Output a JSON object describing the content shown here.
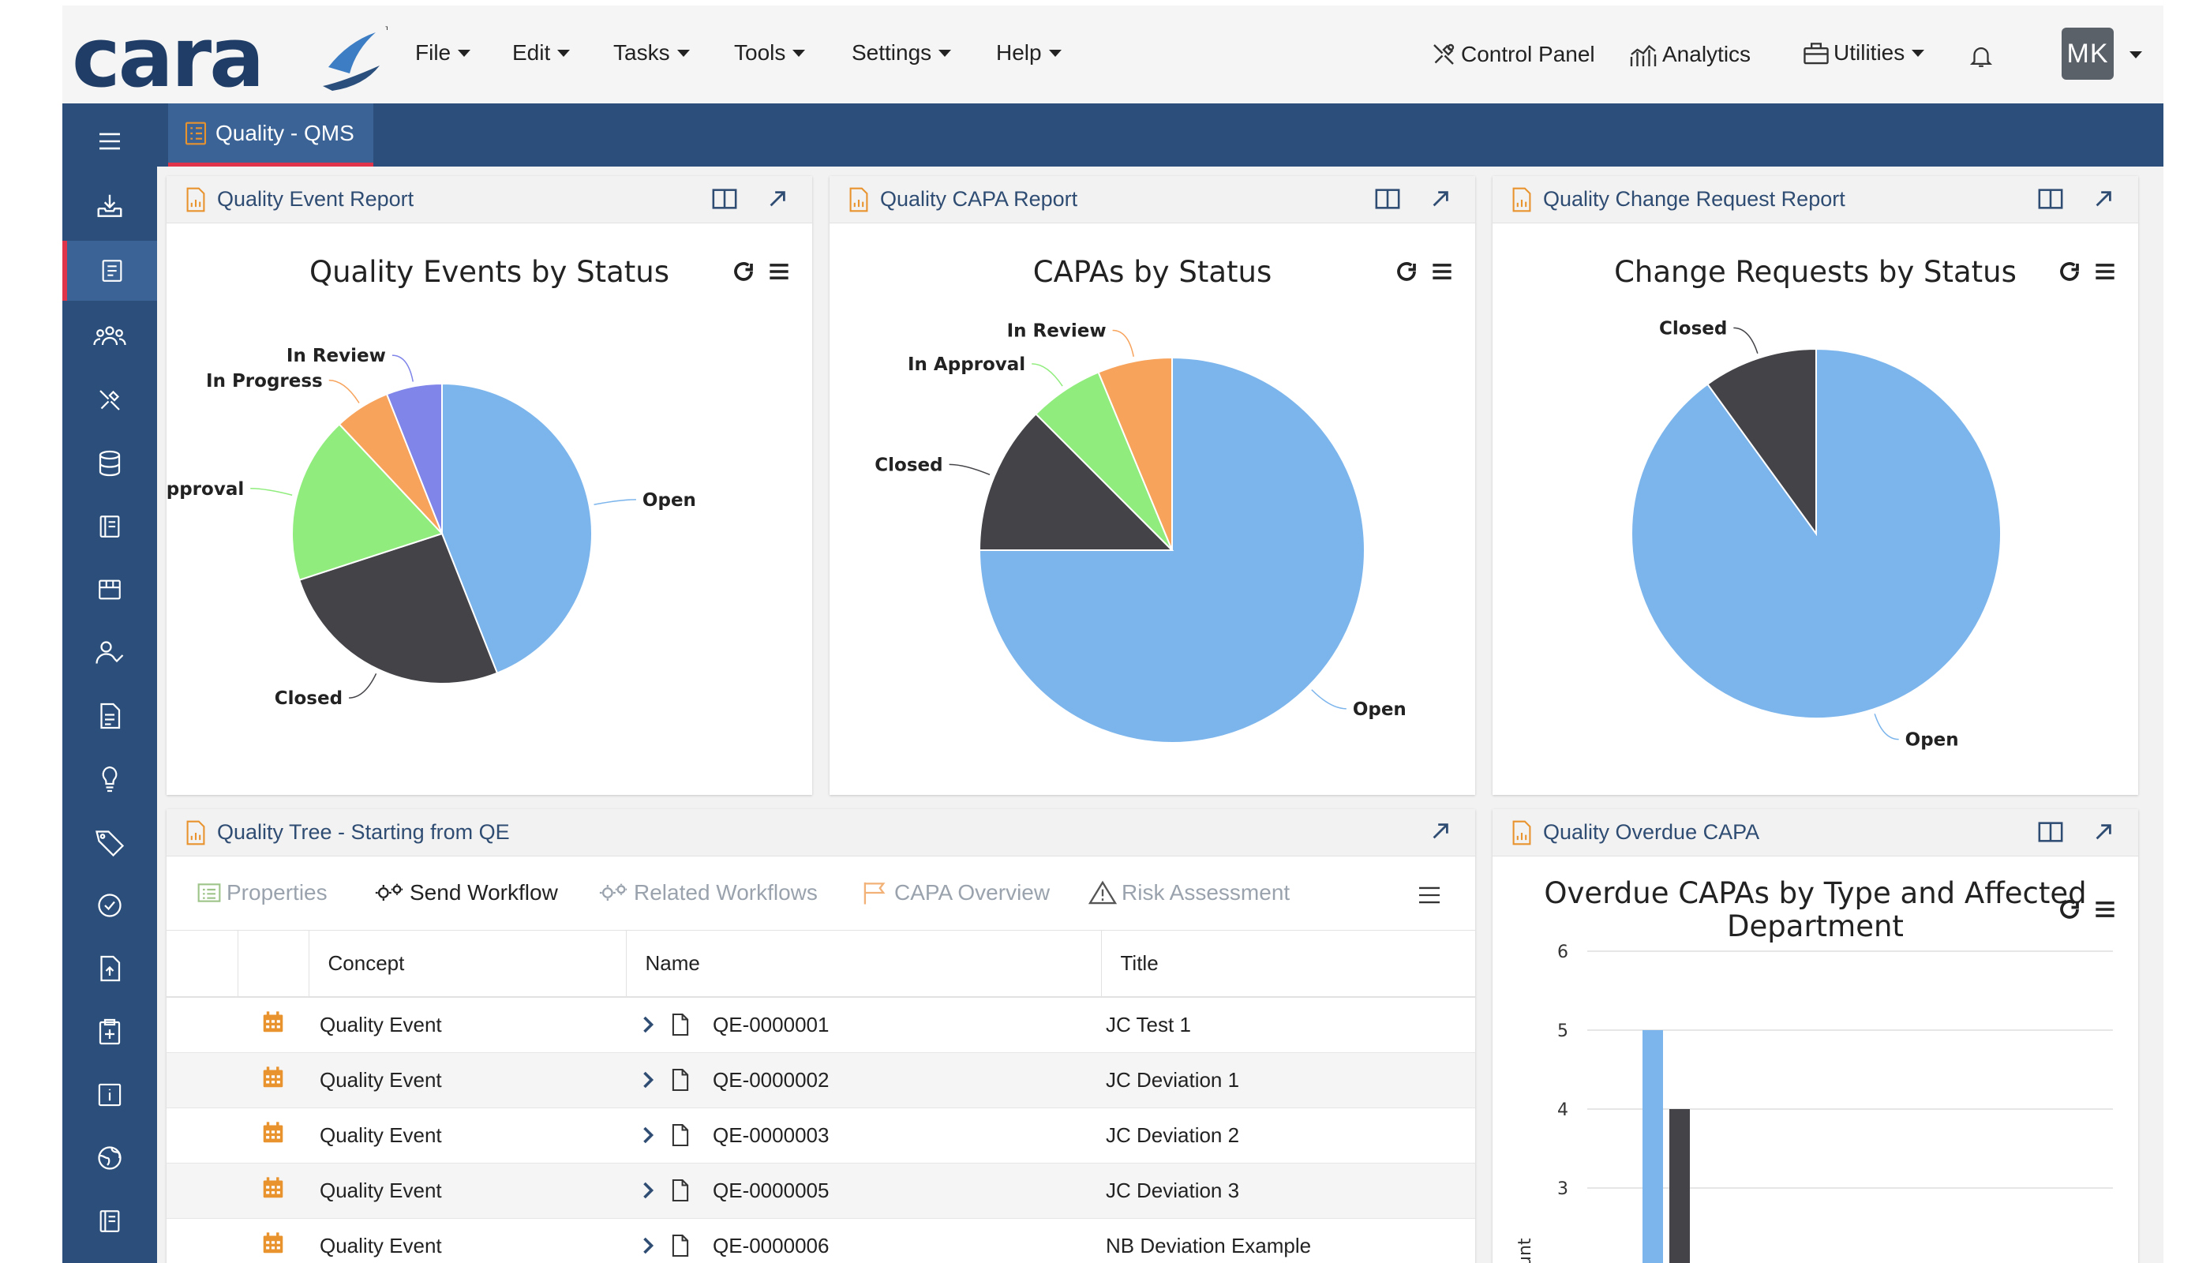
{
  "app": {
    "logo_text": "cara",
    "trademark": "™",
    "menus": [
      {
        "label": "File"
      },
      {
        "label": "Edit"
      },
      {
        "label": "Tasks"
      },
      {
        "label": "Tools"
      },
      {
        "label": "Settings"
      },
      {
        "label": "Help"
      }
    ],
    "tools": {
      "control_panel": "Control Panel",
      "analytics": "Analytics",
      "utilities": "Utilities"
    },
    "user_initials": "MK"
  },
  "tab": {
    "label": "Quality - QMS"
  },
  "panels": {
    "event_report": {
      "header": "Quality Event Report",
      "chart_title": "Quality Events by Status"
    },
    "capa_report": {
      "header": "Quality CAPA Report",
      "chart_title": "CAPAs by Status"
    },
    "change_report": {
      "header": "Quality Change Request Report",
      "chart_title": "Change Requests by Status"
    },
    "tree": {
      "header": "Quality Tree - Starting from QE",
      "toolbar": {
        "properties": "Properties",
        "send_workflow": "Send Workflow",
        "related_workflows": "Related Workflows",
        "capa_overview": "CAPA Overview",
        "risk_assessment": "Risk Assessment"
      },
      "columns": [
        "Concept",
        "Name",
        "Title"
      ],
      "rows": [
        {
          "concept": "Quality Event",
          "name": "QE-0000001",
          "title": "JC Test 1"
        },
        {
          "concept": "Quality Event",
          "name": "QE-0000002",
          "title": "JC Deviation 1"
        },
        {
          "concept": "Quality Event",
          "name": "QE-0000003",
          "title": "JC Deviation 2"
        },
        {
          "concept": "Quality Event",
          "name": "QE-0000005",
          "title": "JC Deviation 3"
        },
        {
          "concept": "Quality Event",
          "name": "QE-0000006",
          "title": "NB Deviation Example"
        }
      ]
    },
    "overdue": {
      "header": "Quality Overdue CAPA",
      "chart_title_line1": "Overdue CAPAs by Type and Affected",
      "chart_title_line2": "Department",
      "y_axis_partial": "unt"
    }
  },
  "colors": {
    "open": "#7cb5ec",
    "closed": "#434348",
    "in_approval": "#90ed7d",
    "in_progress": "#f7a35c",
    "in_review": "#8085e9",
    "nav": "#2b4f7a",
    "accent_red": "#e0344a",
    "icon_orange": "#e8932e"
  },
  "chart_data": [
    {
      "type": "pie",
      "title": "Quality Events by Status",
      "slices": [
        {
          "label": "Open",
          "value": 44,
          "color": "#7cb5ec"
        },
        {
          "label": "Closed",
          "value": 26,
          "color": "#434348"
        },
        {
          "label": "In Approval",
          "value": 18,
          "color": "#90ed7d"
        },
        {
          "label": "In Progress",
          "value": 6,
          "color": "#f7a35c"
        },
        {
          "label": "In Review",
          "value": 6,
          "color": "#8085e9"
        }
      ]
    },
    {
      "type": "pie",
      "title": "CAPAs by Status",
      "slices": [
        {
          "label": "Open",
          "value": 75,
          "color": "#7cb5ec"
        },
        {
          "label": "Closed",
          "value": 12.5,
          "color": "#434348"
        },
        {
          "label": "In Approval",
          "value": 6.25,
          "color": "#90ed7d"
        },
        {
          "label": "In Review",
          "value": 6.25,
          "color": "#f7a35c"
        }
      ]
    },
    {
      "type": "pie",
      "title": "Change Requests by Status",
      "slices": [
        {
          "label": "Open",
          "value": 90,
          "color": "#7cb5ec"
        },
        {
          "label": "Closed",
          "value": 10,
          "color": "#434348"
        }
      ]
    },
    {
      "type": "bar",
      "title": "Overdue CAPAs by Type and Affected Department",
      "ylim": [
        2,
        6
      ],
      "yticks": [
        6,
        5,
        4,
        3
      ],
      "series": [
        {
          "values": [
            5
          ],
          "color": "#7cb5ec"
        },
        {
          "values": [
            4
          ],
          "color": "#434348"
        }
      ]
    }
  ]
}
